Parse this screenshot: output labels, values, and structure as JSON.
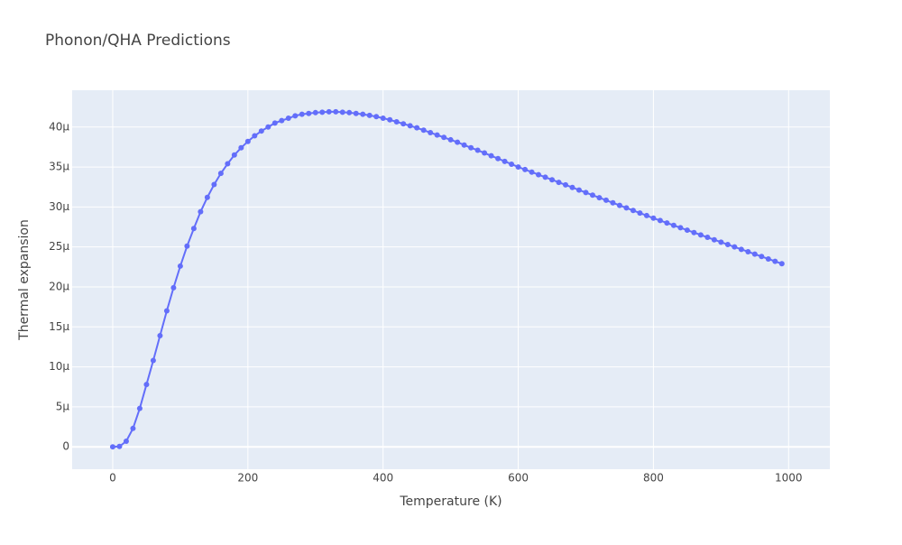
{
  "chart_data": {
    "type": "line",
    "title": "Phonon/QHA Predictions",
    "x_label": "Temperature (K)",
    "y_label": "Thermal expansion",
    "x": [
      0,
      10,
      20,
      30,
      40,
      50,
      60,
      70,
      80,
      90,
      100,
      110,
      120,
      130,
      140,
      150,
      160,
      170,
      180,
      190,
      200,
      210,
      220,
      230,
      240,
      250,
      260,
      270,
      280,
      290,
      300,
      310,
      320,
      330,
      340,
      350,
      360,
      370,
      380,
      390,
      400,
      410,
      420,
      430,
      440,
      450,
      460,
      470,
      480,
      490,
      500,
      510,
      520,
      530,
      540,
      550,
      560,
      570,
      580,
      590,
      600,
      610,
      620,
      630,
      640,
      650,
      660,
      670,
      680,
      690,
      700,
      710,
      720,
      730,
      740,
      750,
      760,
      770,
      780,
      790,
      800,
      810,
      820,
      830,
      840,
      850,
      860,
      870,
      880,
      890,
      900,
      910,
      920,
      930,
      940,
      950,
      960,
      970,
      980,
      990
    ],
    "series": [
      {
        "name": "Thermal expansion",
        "color": "#636efa",
        "values": [
          0,
          5e-08,
          7e-07,
          2.3e-06,
          4.8e-06,
          7.8e-06,
          1.08e-05,
          1.39e-05,
          1.7e-05,
          1.99e-05,
          2.26e-05,
          2.51e-05,
          2.73e-05,
          2.94e-05,
          3.12e-05,
          3.28e-05,
          3.42e-05,
          3.54e-05,
          3.65e-05,
          3.74e-05,
          3.82e-05,
          3.89e-05,
          3.95e-05,
          4e-05,
          4.05e-05,
          4.08e-05,
          4.11e-05,
          4.14e-05,
          4.16e-05,
          4.17e-05,
          4.18e-05,
          4.185e-05,
          4.19e-05,
          4.19e-05,
          4.185e-05,
          4.18e-05,
          4.17e-05,
          4.16e-05,
          4.145e-05,
          4.13e-05,
          4.11e-05,
          4.09e-05,
          4.065e-05,
          4.04e-05,
          4.015e-05,
          3.99e-05,
          3.96e-05,
          3.93e-05,
          3.9e-05,
          3.87e-05,
          3.84e-05,
          3.81e-05,
          3.775e-05,
          3.74e-05,
          3.71e-05,
          3.675e-05,
          3.64e-05,
          3.605e-05,
          3.57e-05,
          3.535e-05,
          3.5e-05,
          3.468e-05,
          3.436e-05,
          3.404e-05,
          3.372e-05,
          3.34e-05,
          3.308e-05,
          3.276e-05,
          3.244e-05,
          3.212e-05,
          3.18e-05,
          3.148e-05,
          3.116e-05,
          3.084e-05,
          3.052e-05,
          3.02e-05,
          2.988e-05,
          2.956e-05,
          2.924e-05,
          2.892e-05,
          2.86e-05,
          2.83e-05,
          2.8e-05,
          2.77e-05,
          2.74e-05,
          2.71e-05,
          2.68e-05,
          2.65e-05,
          2.62e-05,
          2.59e-05,
          2.56e-05,
          2.53e-05,
          2.5e-05,
          2.47e-05,
          2.44e-05,
          2.41e-05,
          2.38e-05,
          2.35e-05,
          2.32e-05,
          2.29e-05
        ]
      }
    ],
    "xlim": [
      -60,
      1061
    ],
    "ylim": [
      -2.8e-06,
      4.46e-05
    ],
    "xticks": [
      0,
      200,
      400,
      600,
      800,
      1000
    ],
    "yticks": [
      0,
      {
        "value": 5e-06,
        "label": "5μ"
      },
      {
        "value": 1e-05,
        "label": "10μ"
      },
      {
        "value": 1.5e-05,
        "label": "15μ"
      },
      {
        "value": 2e-05,
        "label": "20μ"
      },
      {
        "value": 2.5e-05,
        "label": "25μ"
      },
      {
        "value": 3e-05,
        "label": "30μ"
      },
      {
        "value": 3.5e-05,
        "label": "35μ"
      },
      {
        "value": 4e-05,
        "label": "40μ"
      }
    ],
    "grid": true
  }
}
